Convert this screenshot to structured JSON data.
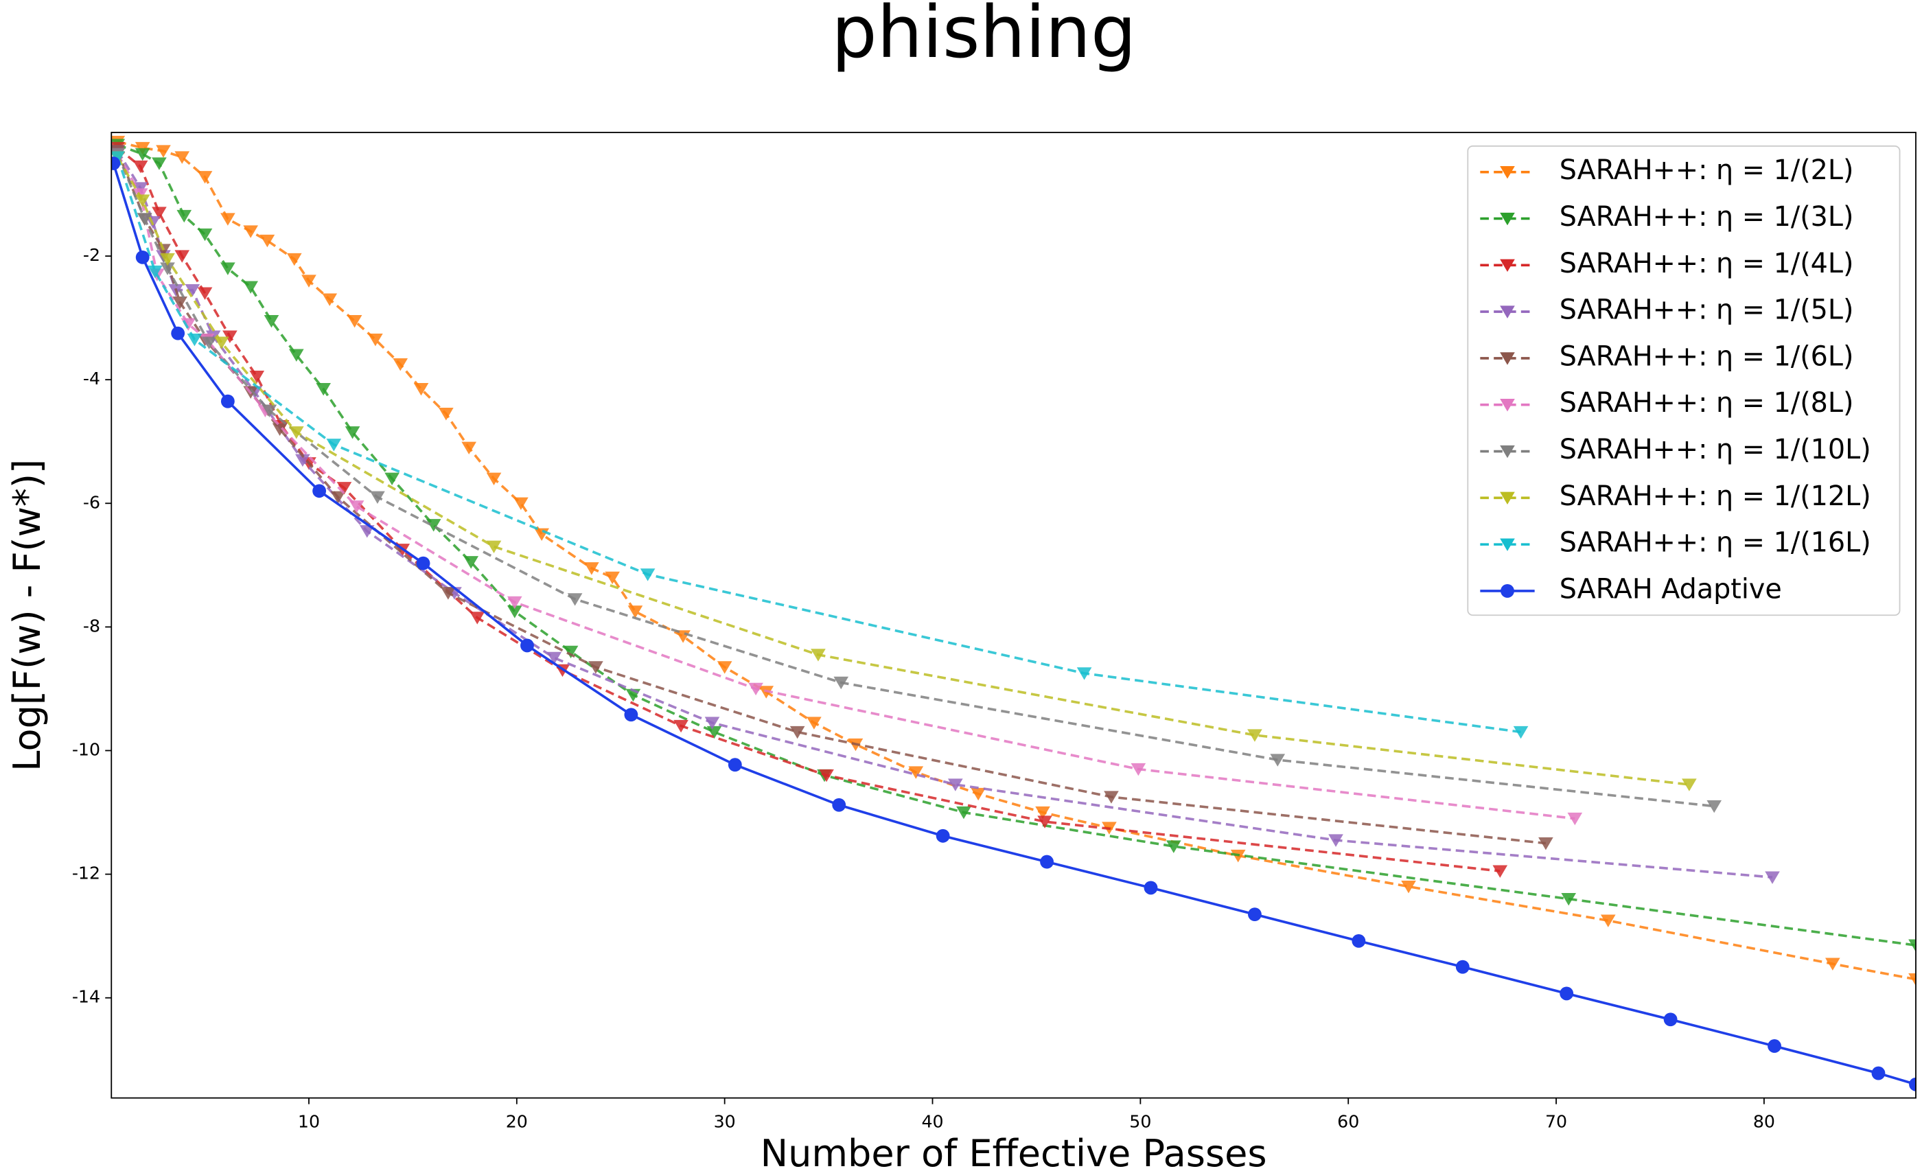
{
  "chart_data": {
    "type": "line",
    "title": "phishing",
    "xlabel": "Number of Effective Passes",
    "ylabel": "Log[F(w) - F(w*)]",
    "xlim": [
      0.5,
      87.3
    ],
    "ylim": [
      -15.62,
      0
    ],
    "xticks": [
      10,
      20,
      30,
      40,
      50,
      60,
      70,
      80
    ],
    "yticks": [
      -2,
      -4,
      -6,
      -8,
      -10,
      -12,
      -14
    ],
    "legend": "upper right",
    "series": [
      {
        "name": "SARAH++: η = 1/(2L)",
        "color": "#ff7f0e",
        "dashed": true,
        "marker": "triangle",
        "x": [
          0.8,
          2,
          3,
          3.9,
          5,
          6.1,
          7.2,
          8,
          9.3,
          10,
          11,
          12.2,
          13.2,
          14.4,
          15.4,
          16.6,
          17.7,
          18.9,
          20.2,
          21.2,
          23.6,
          24.6,
          25.7,
          28,
          30,
          32,
          34.3,
          36.3,
          39.2,
          42.2,
          45.3,
          48.5,
          54.7,
          62.9,
          72.5,
          83.3,
          87.3
        ],
        "values": [
          -0.15,
          -0.25,
          -0.3,
          -0.4,
          -0.72,
          -1.4,
          -1.6,
          -1.75,
          -2.05,
          -2.4,
          -2.7,
          -3.05,
          -3.35,
          -3.75,
          -4.15,
          -4.55,
          -5.1,
          -5.6,
          -6.0,
          -6.5,
          -7.05,
          -7.2,
          -7.75,
          -8.15,
          -8.65,
          -9.05,
          -9.55,
          -9.9,
          -10.35,
          -10.7,
          -11.0,
          -11.25,
          -11.7,
          -12.2,
          -12.75,
          -13.45,
          -13.7
        ]
      },
      {
        "name": "SARAH++: η = 1/(3L)",
        "color": "#2ca02c",
        "dashed": true,
        "marker": "triangle",
        "x": [
          0.8,
          2,
          2.8,
          4,
          5,
          6.1,
          7.2,
          8.2,
          9.4,
          10.7,
          12.1,
          14,
          16,
          17.8,
          19.9,
          22.6,
          25.6,
          29.5,
          34.8,
          41.5,
          51.6,
          70.6,
          87.3
        ],
        "values": [
          -0.2,
          -0.35,
          -0.5,
          -1.35,
          -1.65,
          -2.2,
          -2.5,
          -3.05,
          -3.6,
          -4.15,
          -4.85,
          -5.6,
          -6.35,
          -6.95,
          -7.75,
          -8.4,
          -9.1,
          -9.7,
          -10.4,
          -11.0,
          -11.55,
          -12.4,
          -13.15
        ]
      },
      {
        "name": "SARAH++: η = 1/(4L)",
        "color": "#d62728",
        "dashed": true,
        "marker": "triangle",
        "x": [
          0.8,
          1.9,
          2.8,
          3.9,
          5,
          6.2,
          7.5,
          8.7,
          10,
          11.7,
          14.5,
          18.1,
          22.2,
          27.9,
          34.9,
          45.4,
          67.3
        ],
        "values": [
          -0.25,
          -0.55,
          -1.3,
          -2.0,
          -2.6,
          -3.3,
          -3.95,
          -4.75,
          -5.35,
          -5.75,
          -6.75,
          -7.85,
          -8.7,
          -9.6,
          -10.4,
          -11.15,
          -11.95
        ]
      },
      {
        "name": "SARAH++: η = 1/(5L)",
        "color": "#9467bd",
        "dashed": true,
        "marker": "triangle",
        "x": [
          0.8,
          1.9,
          2.5,
          3,
          3.6,
          4.4,
          5.4,
          7.4,
          9.7,
          12.8,
          17,
          21.8,
          29.4,
          41.1,
          59.4,
          80.4
        ],
        "values": [
          -0.3,
          -0.9,
          -1.45,
          -2.0,
          -2.55,
          -2.55,
          -3.3,
          -4.2,
          -5.3,
          -6.45,
          -7.45,
          -8.5,
          -9.55,
          -10.55,
          -11.45,
          -12.05
        ]
      },
      {
        "name": "SARAH++: η = 1/(6L)",
        "color": "#8c564b",
        "dashed": true,
        "marker": "triangle",
        "x": [
          0.8,
          2.1,
          3,
          3.8,
          5,
          7.2,
          8.6,
          11.4,
          16.7,
          23.8,
          33.5,
          48.6,
          69.5
        ],
        "values": [
          -0.3,
          -1.4,
          -1.9,
          -2.75,
          -3.35,
          -4.2,
          -4.8,
          -5.9,
          -7.45,
          -8.65,
          -9.7,
          -10.75,
          -11.5
        ]
      },
      {
        "name": "SARAH++: η = 1/(8L)",
        "color": "#e377c2",
        "dashed": true,
        "marker": "triangle",
        "x": [
          0.8,
          1.9,
          2.7,
          4.2,
          5.1,
          7.9,
          12.3,
          19.9,
          31.5,
          49.9,
          70.9
        ],
        "values": [
          -0.35,
          -1.0,
          -2.3,
          -3.1,
          -3.35,
          -4.5,
          -6.05,
          -7.6,
          -9.0,
          -10.3,
          -11.1
        ]
      },
      {
        "name": "SARAH++: η = 1/(10L)",
        "color": "#7f7f7f",
        "dashed": true,
        "marker": "triangle",
        "x": [
          0.8,
          2.1,
          3.2,
          5.2,
          8.1,
          13.3,
          22.8,
          35.6,
          56.6,
          77.6
        ],
        "values": [
          -0.35,
          -1.4,
          -2.2,
          -3.4,
          -4.5,
          -5.9,
          -7.55,
          -8.9,
          -10.15,
          -10.9
        ]
      },
      {
        "name": "SARAH++: η = 1/(12L)",
        "color": "#bcbd22",
        "dashed": true,
        "marker": "triangle",
        "x": [
          0.8,
          2,
          3.2,
          5.8,
          9.4,
          18.9,
          34.5,
          55.5,
          76.4
        ],
        "values": [
          -0.4,
          -1.1,
          -2.05,
          -3.4,
          -4.85,
          -6.7,
          -8.45,
          -9.75,
          -10.55
        ]
      },
      {
        "name": "SARAH++: η = 1/(16L)",
        "color": "#17becf",
        "dashed": true,
        "marker": "triangle",
        "x": [
          0.8,
          2.6,
          4.5,
          11.2,
          26.3,
          47.3,
          68.3
        ],
        "values": [
          -0.4,
          -2.25,
          -3.35,
          -5.05,
          -7.15,
          -8.75,
          -9.7
        ]
      },
      {
        "name": "SARAH Adaptive",
        "color": "#1f3fe8",
        "dashed": false,
        "marker": "circle",
        "x": [
          0.6,
          2,
          3.7,
          6.1,
          10.5,
          15.5,
          20.5,
          25.5,
          30.5,
          35.5,
          40.5,
          45.5,
          50.5,
          55.5,
          60.5,
          65.5,
          70.5,
          75.5,
          80.5,
          85.5,
          87.3
        ],
        "values": [
          -0.5,
          -2.02,
          -3.25,
          -4.35,
          -5.8,
          -6.97,
          -8.3,
          -9.42,
          -10.23,
          -10.88,
          -11.38,
          -11.8,
          -12.22,
          -12.65,
          -13.08,
          -13.5,
          -13.93,
          -14.35,
          -14.78,
          -15.22,
          -15.4
        ]
      }
    ]
  }
}
